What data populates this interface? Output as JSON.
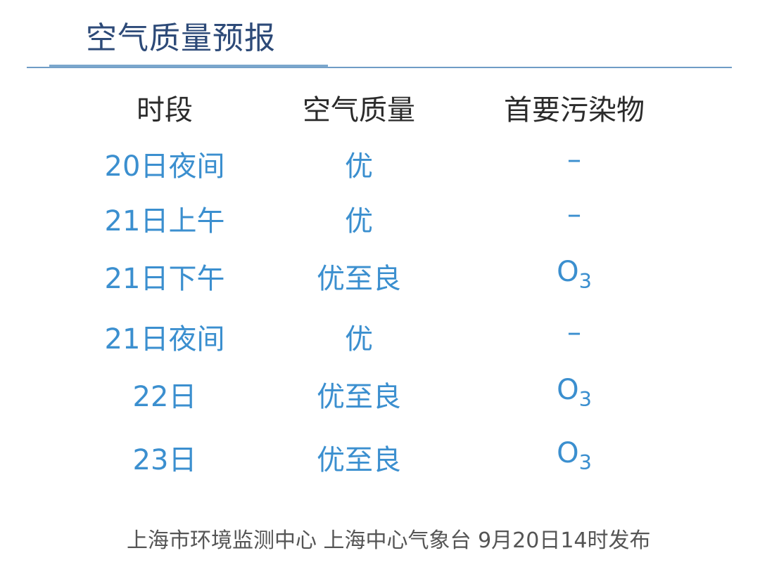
{
  "title": "空气质量预报",
  "headers": [
    "时段",
    "空气质量",
    "首要污染物"
  ],
  "rows": [
    {
      "period": "20日夜间",
      "quality": "优",
      "pollutant": "–",
      "pollutant_sub": ""
    },
    {
      "period": "21日上午",
      "quality": "优",
      "pollutant": "–",
      "pollutant_sub": ""
    },
    {
      "period": "21日下午",
      "quality": "优至良",
      "pollutant": "O",
      "pollutant_sub": "3"
    },
    {
      "period": "21日夜间",
      "quality": "优",
      "pollutant": "–",
      "pollutant_sub": ""
    },
    {
      "period": "22日",
      "quality": "优至良",
      "pollutant": "O",
      "pollutant_sub": "3"
    },
    {
      "period": "23日",
      "quality": "优至良",
      "pollutant": "O",
      "pollutant_sub": "3"
    }
  ],
  "footer": "上海市环境监测中心 上海中心气象台 9月20日14时发布",
  "colors": {
    "title": "#2d4a78",
    "value": "#3b8fcf",
    "rule": "#6f9cc6"
  }
}
